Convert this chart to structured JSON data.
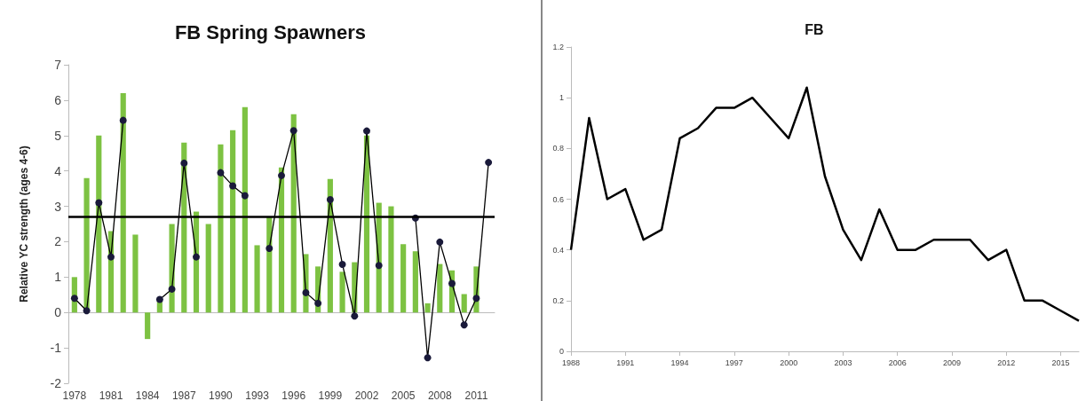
{
  "chart_data": [
    {
      "type": "bar",
      "title": "FB Spring Spawners",
      "ylabel": "Relative YC strength (ages 4-6)",
      "categories": [
        "1978",
        null,
        null,
        "1981",
        null,
        null,
        "1984",
        null,
        null,
        "1987",
        null,
        null,
        "1990",
        null,
        null,
        "1993",
        null,
        null,
        "1996",
        null,
        null,
        "1999",
        null,
        null,
        "2002",
        null,
        null,
        "2005",
        null,
        null,
        "2008",
        null,
        null,
        "2011",
        null
      ],
      "ylim": [
        -2,
        7
      ],
      "yticks": [
        -2,
        -1,
        0,
        1,
        2,
        3,
        4,
        5,
        6,
        7
      ],
      "marker": "circle",
      "series": [
        {
          "type": "bar",
          "color": "#7dc242",
          "values": [
            1.0,
            3.8,
            5.0,
            2.3,
            6.2,
            2.2,
            -0.75,
            0.3,
            2.5,
            4.8,
            2.85,
            2.5,
            4.75,
            5.15,
            5.8,
            1.9,
            2.7,
            4.1,
            5.6,
            1.65,
            1.3,
            3.77,
            1.15,
            1.42,
            5.0,
            3.1,
            3.0,
            1.93,
            1.73,
            0.26,
            1.37,
            1.19,
            0.52,
            1.3,
            null
          ]
        },
        {
          "type": "line",
          "color": "#1a1a3a",
          "values": [
            0.4,
            0.05,
            3.1,
            1.57,
            5.43,
            null,
            null,
            0.37,
            0.66,
            4.22,
            1.57,
            null,
            3.95,
            3.58,
            3.3,
            null,
            1.81,
            3.87,
            5.14,
            0.56,
            0.26,
            3.19,
            1.36,
            -0.1,
            5.13,
            1.33,
            null,
            null,
            2.67,
            -1.28,
            1.99,
            0.82,
            -0.35,
            0.4,
            4.24
          ]
        }
      ],
      "ref_lines": [
        {
          "axis": "y",
          "value": 2.7,
          "color": "#000000"
        }
      ]
    },
    {
      "type": "line",
      "title": "FB",
      "categories": [
        "1988",
        null,
        null,
        "1991",
        null,
        null,
        "1994",
        null,
        null,
        "1997",
        null,
        null,
        "2000",
        null,
        null,
        "2003",
        null,
        null,
        "2006",
        null,
        null,
        "2009",
        null,
        null,
        "2012",
        null,
        null,
        "2015",
        null
      ],
      "ylim": [
        0,
        1.2
      ],
      "yticks": [
        0,
        0.2,
        0.4,
        0.6,
        0.8,
        1,
        1.2
      ],
      "color": "#000000",
      "marker": "none",
      "values": [
        0.4,
        0.92,
        0.6,
        0.64,
        0.44,
        0.48,
        0.84,
        0.88,
        0.96,
        0.96,
        1.0,
        0.92,
        0.84,
        1.04,
        0.69,
        0.48,
        0.36,
        0.56,
        0.4,
        0.4,
        0.44,
        0.44,
        0.44,
        0.36,
        0.4,
        0.2,
        0.2,
        0.16,
        0.12
      ]
    }
  ]
}
